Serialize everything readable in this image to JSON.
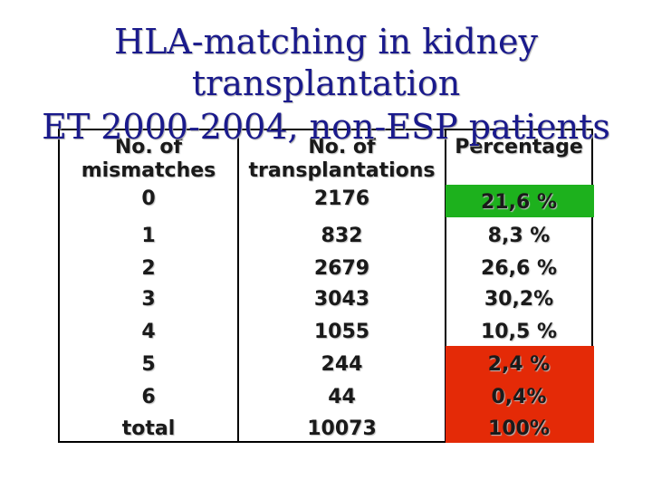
{
  "title": {
    "line1": "HLA-matching in kidney",
    "line2": "transplantation",
    "line3": "ET 2000-2004, non-ESP patients"
  },
  "table": {
    "headers": [
      {
        "line1": "No. of",
        "line2": "mismatches"
      },
      {
        "line1": "No. of",
        "line2": "transplantations"
      },
      {
        "line1": "Percentage",
        "line2": ""
      }
    ],
    "rows": [
      {
        "mismatches": "0",
        "transplantations": "2176",
        "percentage": "21,6 %",
        "highlight": "green"
      },
      {
        "mismatches": "1",
        "transplantations": "832",
        "percentage": "8,3 %",
        "highlight": ""
      },
      {
        "mismatches": "2",
        "transplantations": "2679",
        "percentage": "26,6 %",
        "highlight": ""
      },
      {
        "mismatches": "3",
        "transplantations": "3043",
        "percentage": "30,2%",
        "highlight": ""
      },
      {
        "mismatches": "4",
        "transplantations": "1055",
        "percentage": "10,5 %",
        "highlight": ""
      },
      {
        "mismatches": "5",
        "transplantations": "244",
        "percentage": "2,4 %",
        "highlight": "red"
      },
      {
        "mismatches": "6",
        "transplantations": "44",
        "percentage": "0,4%",
        "highlight": "red"
      },
      {
        "mismatches": "total",
        "transplantations": "10073",
        "percentage": "100%",
        "highlight": "red"
      }
    ]
  },
  "colors": {
    "title": "#1a1a8c",
    "highlight_green": "#1db11d",
    "highlight_red": "#e42a07"
  }
}
